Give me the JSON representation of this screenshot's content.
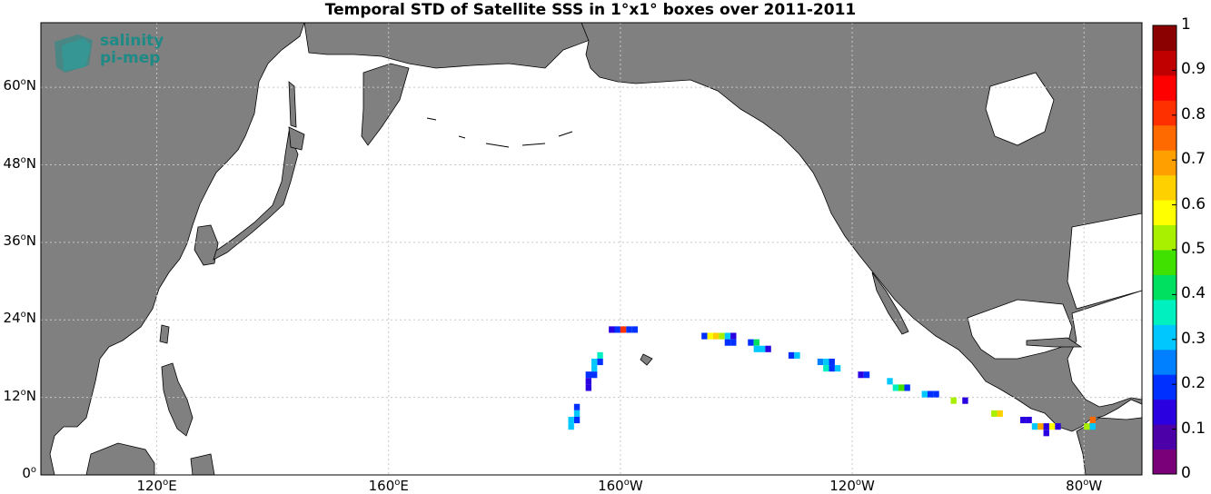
{
  "title": "Temporal STD of Satellite SSS in 1°x1° boxes over 2011-2011",
  "logo": {
    "line1": "salinity",
    "line2": "pi-mep",
    "color": "#1d8a86"
  },
  "colors": {
    "land": "#808080",
    "ocean": "#ffffff",
    "coast": "#000000",
    "grid": "#c8c8c8"
  },
  "map_data": {
    "lon_range": [
      100,
      290
    ],
    "lat_range": [
      0,
      70
    ],
    "lat_ticks": [
      {
        "value": 0,
        "deg": "0",
        "hem": ""
      },
      {
        "value": 12,
        "deg": "12",
        "hem": "N"
      },
      {
        "value": 24,
        "deg": "24",
        "hem": "N"
      },
      {
        "value": 36,
        "deg": "36",
        "hem": "N"
      },
      {
        "value": 48,
        "deg": "48",
        "hem": "N"
      },
      {
        "value": 60,
        "deg": "60",
        "hem": "N"
      }
    ],
    "lon_ticks": [
      {
        "value": 120,
        "deg": "120",
        "hem": "E"
      },
      {
        "value": 160,
        "deg": "160",
        "hem": "E"
      },
      {
        "value": 200,
        "deg": "160",
        "hem": "W"
      },
      {
        "value": 240,
        "deg": "120",
        "hem": "W"
      },
      {
        "value": 280,
        "deg": "80",
        "hem": "W"
      }
    ],
    "colorbar": {
      "min": 0,
      "max": 1,
      "ticks": [
        "0",
        "0.1",
        "0.2",
        "0.3",
        "0.4",
        "0.5",
        "0.6",
        "0.7",
        "0.8",
        "0.9",
        "1"
      ],
      "colors": [
        "#7a007a",
        "#4b00a8",
        "#2a00e0",
        "#0030ff",
        "#0080ff",
        "#00c8ff",
        "#00f0c0",
        "#00e060",
        "#40e000",
        "#a8f000",
        "#ffff00",
        "#ffd000",
        "#ffa000",
        "#ff6a00",
        "#ff3000",
        "#ff0000",
        "#c00000",
        "#8b0000"
      ]
    },
    "cells": [
      {
        "lon": 198,
        "lat": 22,
        "std": 0.15
      },
      {
        "lon": 199,
        "lat": 22,
        "std": 0.22
      },
      {
        "lon": 200,
        "lat": 22,
        "std": 0.8
      },
      {
        "lon": 201,
        "lat": 22,
        "std": 0.22
      },
      {
        "lon": 202,
        "lat": 22,
        "std": 0.2
      },
      {
        "lon": 214,
        "lat": 21,
        "std": 0.22
      },
      {
        "lon": 215,
        "lat": 21,
        "std": 0.6
      },
      {
        "lon": 216,
        "lat": 21,
        "std": 0.65
      },
      {
        "lon": 217,
        "lat": 21,
        "std": 0.55
      },
      {
        "lon": 218,
        "lat": 21,
        "std": 0.3
      },
      {
        "lon": 219,
        "lat": 21,
        "std": 0.12
      },
      {
        "lon": 218,
        "lat": 20,
        "std": 0.2
      },
      {
        "lon": 219,
        "lat": 20,
        "std": 0.2
      },
      {
        "lon": 222,
        "lat": 20,
        "std": 0.2
      },
      {
        "lon": 223,
        "lat": 20,
        "std": 0.4
      },
      {
        "lon": 223,
        "lat": 19,
        "std": 0.3
      },
      {
        "lon": 224,
        "lat": 19,
        "std": 0.3
      },
      {
        "lon": 225,
        "lat": 19,
        "std": 0.12
      },
      {
        "lon": 229,
        "lat": 18,
        "std": 0.2
      },
      {
        "lon": 230,
        "lat": 18,
        "std": 0.32
      },
      {
        "lon": 234,
        "lat": 17,
        "std": 0.25
      },
      {
        "lon": 235,
        "lat": 17,
        "std": 0.3
      },
      {
        "lon": 236,
        "lat": 17,
        "std": 0.2
      },
      {
        "lon": 235,
        "lat": 16,
        "std": 0.35
      },
      {
        "lon": 236,
        "lat": 16,
        "std": 0.2
      },
      {
        "lon": 237,
        "lat": 16,
        "std": 0.3
      },
      {
        "lon": 241,
        "lat": 15,
        "std": 0.12
      },
      {
        "lon": 242,
        "lat": 15,
        "std": 0.2
      },
      {
        "lon": 246,
        "lat": 14,
        "std": 0.3
      },
      {
        "lon": 247,
        "lat": 13,
        "std": 0.35
      },
      {
        "lon": 248,
        "lat": 13,
        "std": 0.45
      },
      {
        "lon": 249,
        "lat": 13,
        "std": 0.2
      },
      {
        "lon": 252,
        "lat": 12,
        "std": 0.3
      },
      {
        "lon": 253,
        "lat": 12,
        "std": 0.2
      },
      {
        "lon": 254,
        "lat": 12,
        "std": 0.2
      },
      {
        "lon": 257,
        "lat": 11,
        "std": 0.5
      },
      {
        "lon": 259,
        "lat": 11,
        "std": 0.12
      },
      {
        "lon": 264,
        "lat": 9,
        "std": 0.5
      },
      {
        "lon": 265,
        "lat": 9,
        "std": 0.62
      },
      {
        "lon": 269,
        "lat": 8,
        "std": 0.12
      },
      {
        "lon": 270,
        "lat": 8,
        "std": 0.12
      },
      {
        "lon": 271,
        "lat": 7,
        "std": 0.32
      },
      {
        "lon": 272,
        "lat": 7,
        "std": 0.68
      },
      {
        "lon": 273,
        "lat": 7,
        "std": 0.12
      },
      {
        "lon": 274,
        "lat": 7,
        "std": 0.6
      },
      {
        "lon": 275,
        "lat": 7,
        "std": 0.12
      },
      {
        "lon": 273,
        "lat": 6,
        "std": 0.12
      },
      {
        "lon": 280,
        "lat": 7,
        "std": 0.5
      },
      {
        "lon": 281,
        "lat": 8,
        "std": 0.75
      },
      {
        "lon": 281,
        "lat": 7,
        "std": 0.3
      },
      {
        "lon": 196,
        "lat": 18,
        "std": 0.35
      },
      {
        "lon": 196,
        "lat": 17,
        "std": 0.2
      },
      {
        "lon": 195,
        "lat": 17,
        "std": 0.3
      },
      {
        "lon": 195,
        "lat": 16,
        "std": 0.3
      },
      {
        "lon": 194,
        "lat": 15,
        "std": 0.2
      },
      {
        "lon": 195,
        "lat": 15,
        "std": 0.2
      },
      {
        "lon": 194,
        "lat": 14,
        "std": 0.12
      },
      {
        "lon": 194,
        "lat": 13,
        "std": 0.15
      },
      {
        "lon": 192,
        "lat": 10,
        "std": 0.2
      },
      {
        "lon": 192,
        "lat": 9,
        "std": 0.3
      },
      {
        "lon": 192,
        "lat": 8,
        "std": 0.2
      },
      {
        "lon": 191,
        "lat": 8,
        "std": 0.3
      },
      {
        "lon": 191,
        "lat": 7,
        "std": 0.3
      }
    ]
  }
}
